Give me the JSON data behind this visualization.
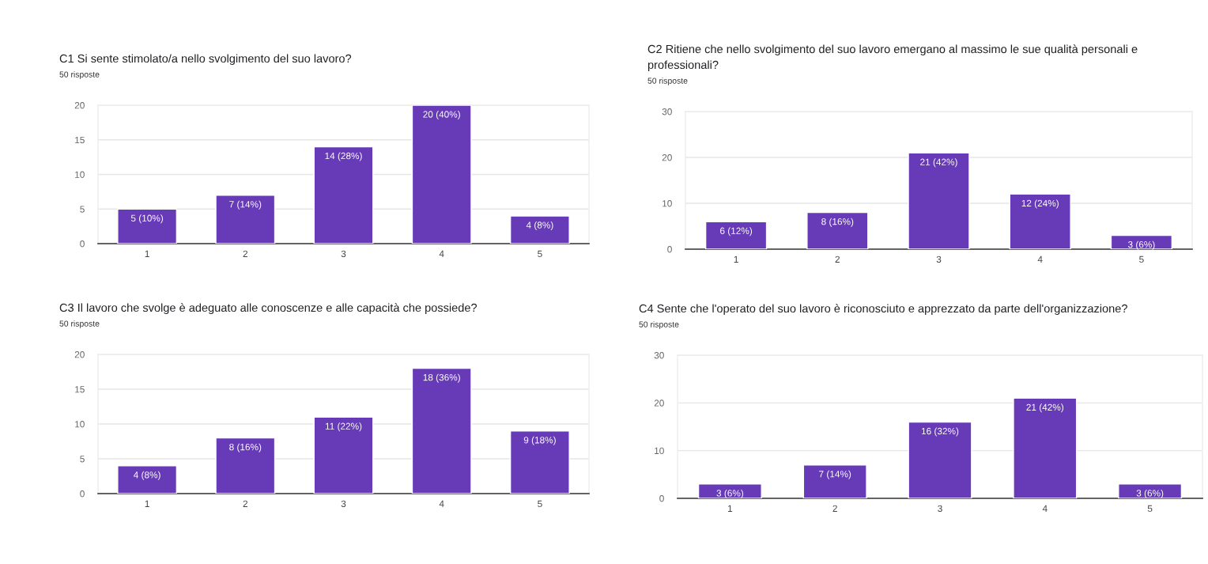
{
  "chart_data": [
    {
      "type": "bar",
      "title": "C1 Si sente stimolato/a nello svolgimento del suo lavoro?",
      "subtitle": "50 risposte",
      "categories": [
        "1",
        "2",
        "3",
        "4",
        "5"
      ],
      "values": [
        5,
        7,
        14,
        20,
        4
      ],
      "value_labels": [
        "5 (10%)",
        "7 (14%)",
        "14 (28%)",
        "20 (40%)",
        "4 (8%)"
      ],
      "color": "#673ab7",
      "ylim": [
        0,
        20
      ],
      "yticks": [
        0,
        5,
        10,
        15,
        20
      ],
      "grid": "y"
    },
    {
      "type": "bar",
      "title": "C2 Ritiene che nello svolgimento del suo lavoro emergano al massimo le sue qualità personali e professionali?",
      "subtitle": "50 risposte",
      "categories": [
        "1",
        "2",
        "3",
        "4",
        "5"
      ],
      "values": [
        6,
        8,
        21,
        12,
        3
      ],
      "value_labels": [
        "6 (12%)",
        "8 (16%)",
        "21 (42%)",
        "12 (24%)",
        "3 (6%)"
      ],
      "color": "#673ab7",
      "ylim": [
        0,
        30
      ],
      "yticks": [
        0,
        10,
        20,
        30
      ],
      "grid": "y"
    },
    {
      "type": "bar",
      "title": "C3 Il lavoro che svolge è adeguato alle conoscenze e alle capacità che possiede?",
      "subtitle": "50 risposte",
      "categories": [
        "1",
        "2",
        "3",
        "4",
        "5"
      ],
      "values": [
        4,
        8,
        11,
        18,
        9
      ],
      "value_labels": [
        "4 (8%)",
        "8 (16%)",
        "11 (22%)",
        "18 (36%)",
        "9 (18%)"
      ],
      "color": "#673ab7",
      "ylim": [
        0,
        20
      ],
      "yticks": [
        0,
        5,
        10,
        15,
        20
      ],
      "grid": "y"
    },
    {
      "type": "bar",
      "title": "C4 Sente che l'operato del suo lavoro è riconosciuto e apprezzato da parte dell'organizzazione?",
      "subtitle": "50 risposte",
      "categories": [
        "1",
        "2",
        "3",
        "4",
        "5"
      ],
      "values": [
        3,
        7,
        16,
        21,
        3
      ],
      "value_labels": [
        "3 (6%)",
        "7 (14%)",
        "16 (32%)",
        "21 (42%)",
        "3 (6%)"
      ],
      "color": "#673ab7",
      "ylim": [
        0,
        30
      ],
      "yticks": [
        0,
        10,
        20,
        30
      ],
      "grid": "y"
    }
  ]
}
